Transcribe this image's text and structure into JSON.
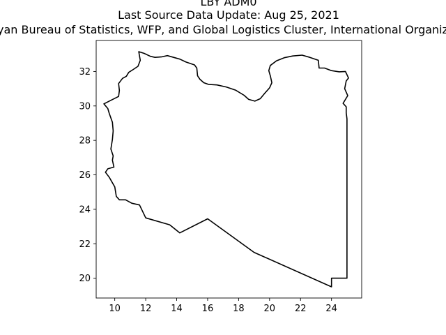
{
  "figure": {
    "title_lines": [
      "LBY ADM0",
      "Last Source Data Update: Aug 25, 2021",
      "Libyan Bureau of Statistics, WFP,  and Global Logistics Cluster, International Organization"
    ]
  },
  "chart_data": {
    "type": "map",
    "xlim": [
      8.8,
      25.95
    ],
    "ylim": [
      18.85,
      33.8
    ],
    "xticks": [
      10,
      12,
      14,
      16,
      18,
      20,
      22,
      24
    ],
    "yticks": [
      20,
      22,
      24,
      26,
      28,
      30,
      32
    ],
    "boundary_color": "#000000",
    "boundary": [
      [
        11.55,
        33.15
      ],
      [
        11.9,
        33.05
      ],
      [
        12.3,
        32.88
      ],
      [
        12.6,
        32.82
      ],
      [
        13.05,
        32.85
      ],
      [
        13.4,
        32.92
      ],
      [
        13.8,
        32.82
      ],
      [
        14.2,
        32.72
      ],
      [
        14.6,
        32.55
      ],
      [
        15.15,
        32.38
      ],
      [
        15.3,
        32.2
      ],
      [
        15.35,
        31.75
      ],
      [
        15.5,
        31.55
      ],
      [
        15.75,
        31.35
      ],
      [
        16.05,
        31.25
      ],
      [
        16.6,
        31.22
      ],
      [
        17.2,
        31.1
      ],
      [
        17.8,
        30.92
      ],
      [
        18.35,
        30.62
      ],
      [
        18.65,
        30.38
      ],
      [
        19.05,
        30.28
      ],
      [
        19.4,
        30.42
      ],
      [
        19.7,
        30.75
      ],
      [
        20.0,
        31.05
      ],
      [
        20.15,
        31.35
      ],
      [
        20.05,
        31.75
      ],
      [
        19.95,
        32.05
      ],
      [
        20.05,
        32.35
      ],
      [
        20.45,
        32.62
      ],
      [
        20.95,
        32.8
      ],
      [
        21.5,
        32.9
      ],
      [
        22.1,
        32.95
      ],
      [
        22.6,
        32.82
      ],
      [
        23.15,
        32.65
      ],
      [
        23.2,
        32.2
      ],
      [
        23.55,
        32.2
      ],
      [
        24.0,
        32.05
      ],
      [
        24.5,
        31.98
      ],
      [
        24.9,
        32.0
      ],
      [
        25.1,
        31.62
      ],
      [
        24.95,
        31.45
      ],
      [
        24.85,
        31.0
      ],
      [
        25.05,
        30.6
      ],
      [
        24.75,
        30.15
      ],
      [
        24.95,
        29.95
      ],
      [
        24.95,
        29.6
      ],
      [
        25.0,
        29.25
      ],
      [
        25.0,
        20.0
      ],
      [
        24.0,
        20.0
      ],
      [
        24.0,
        19.5
      ],
      [
        19.0,
        21.5
      ],
      [
        16.0,
        23.45
      ],
      [
        14.2,
        22.63
      ],
      [
        13.55,
        23.1
      ],
      [
        12.0,
        23.5
      ],
      [
        11.6,
        24.25
      ],
      [
        11.1,
        24.35
      ],
      [
        10.7,
        24.55
      ],
      [
        10.3,
        24.55
      ],
      [
        10.1,
        24.75
      ],
      [
        10.0,
        25.3
      ],
      [
        9.65,
        25.85
      ],
      [
        9.4,
        26.15
      ],
      [
        9.55,
        26.35
      ],
      [
        9.95,
        26.45
      ],
      [
        9.85,
        26.85
      ],
      [
        9.9,
        27.1
      ],
      [
        9.75,
        27.5
      ],
      [
        9.85,
        28.05
      ],
      [
        9.9,
        28.55
      ],
      [
        9.85,
        29.05
      ],
      [
        9.65,
        29.55
      ],
      [
        9.55,
        29.85
      ],
      [
        9.3,
        30.12
      ],
      [
        9.8,
        30.35
      ],
      [
        10.25,
        30.55
      ],
      [
        10.3,
        30.9
      ],
      [
        10.25,
        31.3
      ],
      [
        10.5,
        31.6
      ],
      [
        10.75,
        31.72
      ],
      [
        10.9,
        31.95
      ],
      [
        11.2,
        32.12
      ],
      [
        11.5,
        32.3
      ],
      [
        11.65,
        32.65
      ],
      [
        11.55,
        33.15
      ]
    ]
  }
}
